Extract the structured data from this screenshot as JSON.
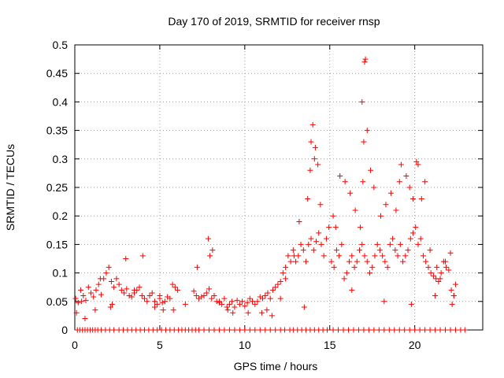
{
  "chart_data": {
    "type": "scatter",
    "title": "Day 170 of 2019, SRMTID for receiver rnsp",
    "xlabel": "GPS time / hours",
    "ylabel": "SRMTID / TECUs",
    "xlim": [
      0,
      24
    ],
    "ylim": [
      0,
      0.5
    ],
    "xticks": [
      0,
      5,
      10,
      15,
      20
    ],
    "xtick_labels": [
      "0",
      "5",
      "10",
      "15",
      "20"
    ],
    "yticks": [
      0,
      0.05,
      0.1,
      0.15,
      0.2,
      0.25,
      0.3,
      0.35,
      0.4,
      0.45,
      0.5
    ],
    "ytick_labels": [
      "0",
      "0.05",
      "0.1",
      "0.15",
      "0.2",
      "0.25",
      "0.3",
      "0.35",
      "0.4",
      "0.45",
      "0.5"
    ],
    "grid": true,
    "marker": "+",
    "color": "#ff0000",
    "series": [
      {
        "name": "SRMTID",
        "x": [
          0.05,
          0.2,
          0.35,
          0.5,
          0.65,
          0.8,
          0.95,
          1.1,
          1.25,
          1.4,
          1.55,
          1.7,
          1.85,
          2.0,
          2.15,
          2.3,
          2.45,
          2.6,
          2.75,
          2.9,
          3.05,
          3.2,
          3.35,
          3.5,
          3.65,
          3.8,
          3.95,
          4.1,
          4.25,
          4.4,
          4.55,
          4.7,
          4.85,
          5.0,
          5.15,
          5.3,
          5.45,
          5.6,
          5.75,
          5.9,
          6.05,
          7.0,
          7.15,
          7.3,
          7.45,
          7.6,
          7.75,
          7.9,
          8.05,
          8.2,
          8.35,
          8.5,
          8.65,
          8.8,
          8.95,
          9.1,
          9.25,
          9.4,
          9.55,
          9.7,
          9.85,
          10.0,
          10.15,
          10.3,
          10.45,
          10.6,
          10.75,
          10.9,
          11.05,
          11.2,
          11.35,
          11.5,
          11.65,
          11.8,
          11.95,
          12.1,
          12.25,
          12.4,
          12.55,
          12.7,
          12.85,
          13.0,
          13.15,
          13.3,
          13.45,
          13.6,
          13.75,
          13.9,
          14.05,
          14.2,
          14.35,
          14.5,
          14.65,
          14.8,
          14.95,
          15.1,
          15.25,
          15.4,
          15.55,
          15.7,
          15.85,
          16.0,
          16.15,
          16.3,
          16.45,
          16.6,
          16.75,
          16.9,
          17.05,
          17.2,
          17.35,
          17.5,
          17.65,
          17.8,
          17.95,
          18.1,
          18.25,
          18.4,
          18.55,
          18.7,
          18.85,
          19.0,
          19.15,
          19.3,
          19.45,
          19.6,
          19.75,
          19.9,
          20.05,
          20.2,
          20.35,
          20.5,
          20.65,
          20.8,
          20.95,
          21.1,
          21.25,
          21.4,
          21.55,
          21.7,
          21.85,
          22.0,
          22.15,
          22.3,
          0.1,
          0.6,
          1.2,
          2.1,
          2.2,
          3.0,
          4.0,
          4.7,
          5.2,
          5.8,
          7.2,
          7.85,
          7.95,
          8.1,
          9.0,
          9.3,
          10.2,
          11.0,
          11.6,
          12.4,
          12.9,
          13.2,
          13.7,
          13.85,
          13.9,
          14.0,
          14.1,
          14.15,
          14.3,
          14.45,
          15.2,
          15.35,
          15.6,
          15.9,
          16.2,
          16.5,
          16.8,
          16.95,
          17.0,
          17.05,
          17.1,
          16.9,
          17.2,
          17.4,
          17.6,
          18.0,
          18.3,
          18.6,
          18.9,
          19.1,
          19.2,
          19.5,
          19.7,
          19.9,
          20.1,
          20.2,
          20.4,
          20.6,
          20.9,
          21.3,
          21.5,
          21.8,
          22.1,
          22.3,
          22.4,
          0.4,
          1.5,
          3.5,
          5.0,
          6.5,
          8.5,
          11.3,
          12.1,
          13.5,
          16.3,
          18.2,
          19.8,
          21.2,
          22.2
        ],
        "y": [
          0.055,
          0.048,
          0.07,
          0.06,
          0.052,
          0.075,
          0.065,
          0.058,
          0.07,
          0.08,
          0.062,
          0.09,
          0.1,
          0.11,
          0.085,
          0.075,
          0.09,
          0.08,
          0.07,
          0.065,
          0.072,
          0.06,
          0.058,
          0.065,
          0.07,
          0.075,
          0.06,
          0.055,
          0.05,
          0.06,
          0.065,
          0.05,
          0.045,
          0.055,
          0.048,
          0.05,
          0.058,
          0.055,
          0.08,
          0.075,
          0.07,
          0.068,
          0.06,
          0.055,
          0.058,
          0.06,
          0.065,
          0.072,
          0.055,
          0.06,
          0.05,
          0.048,
          0.045,
          0.055,
          0.04,
          0.045,
          0.05,
          0.04,
          0.052,
          0.045,
          0.05,
          0.042,
          0.048,
          0.055,
          0.05,
          0.045,
          0.05,
          0.058,
          0.055,
          0.06,
          0.065,
          0.055,
          0.07,
          0.075,
          0.08,
          0.085,
          0.1,
          0.11,
          0.13,
          0.12,
          0.14,
          0.12,
          0.13,
          0.15,
          0.14,
          0.12,
          0.15,
          0.16,
          0.14,
          0.155,
          0.17,
          0.15,
          0.13,
          0.16,
          0.18,
          0.12,
          0.11,
          0.14,
          0.13,
          0.15,
          0.09,
          0.1,
          0.12,
          0.13,
          0.11,
          0.12,
          0.14,
          0.15,
          0.13,
          0.12,
          0.1,
          0.11,
          0.13,
          0.15,
          0.14,
          0.13,
          0.12,
          0.11,
          0.15,
          0.16,
          0.14,
          0.13,
          0.15,
          0.12,
          0.13,
          0.14,
          0.16,
          0.17,
          0.18,
          0.15,
          0.16,
          0.13,
          0.12,
          0.11,
          0.1,
          0.095,
          0.09,
          0.085,
          0.1,
          0.12,
          0.11,
          0.105,
          0.07,
          0.06,
          0.03,
          0.02,
          0.035,
          0.04,
          0.045,
          0.125,
          0.13,
          0.04,
          0.035,
          0.035,
          0.11,
          0.16,
          0.13,
          0.14,
          0.035,
          0.03,
          0.03,
          0.03,
          0.025,
          0.09,
          0.13,
          0.19,
          0.23,
          0.28,
          0.33,
          0.36,
          0.3,
          0.32,
          0.29,
          0.22,
          0.2,
          0.18,
          0.27,
          0.26,
          0.24,
          0.21,
          0.18,
          0.26,
          0.33,
          0.47,
          0.475,
          0.4,
          0.35,
          0.28,
          0.25,
          0.2,
          0.22,
          0.24,
          0.21,
          0.26,
          0.29,
          0.27,
          0.25,
          0.23,
          0.295,
          0.29,
          0.23,
          0.26,
          0.14,
          0.11,
          0.09,
          0.12,
          0.135,
          0.06,
          0.08,
          0.05,
          0.09,
          0.07,
          0.06,
          0.045,
          0.05,
          0.035,
          0.055,
          0.04,
          0.07,
          0.05,
          0.045,
          0.06,
          0.045
        ],
        "zero_x": [
          0.15,
          0.3,
          0.45,
          0.6,
          0.75,
          0.9,
          1.05,
          1.2,
          1.35,
          1.55,
          1.8,
          2.05,
          2.3,
          2.6,
          2.85,
          3.1,
          3.35,
          3.6,
          3.85,
          4.1,
          4.35,
          4.6,
          4.85,
          5.1,
          5.35,
          5.6,
          5.85,
          6.1,
          6.3,
          6.5,
          6.7,
          6.9,
          7.1,
          7.3,
          7.6,
          7.9,
          8.2,
          8.5,
          8.8,
          9.1,
          9.4,
          9.7,
          10.0,
          10.3,
          10.6,
          10.9,
          11.2,
          11.5,
          11.8,
          12.1,
          12.35,
          12.65,
          12.85,
          13.1,
          13.35,
          13.6,
          13.85,
          14.1,
          14.35,
          14.6,
          14.85,
          15.2,
          15.5,
          15.8,
          16.1,
          16.4,
          16.7,
          17.0,
          17.3,
          17.6,
          17.9,
          18.2,
          18.5,
          18.8,
          19.1,
          19.4,
          19.7,
          20.0,
          20.3,
          20.6,
          20.9,
          21.2,
          21.5,
          21.8,
          22.1,
          22.4,
          22.7,
          22.95
        ]
      }
    ]
  }
}
